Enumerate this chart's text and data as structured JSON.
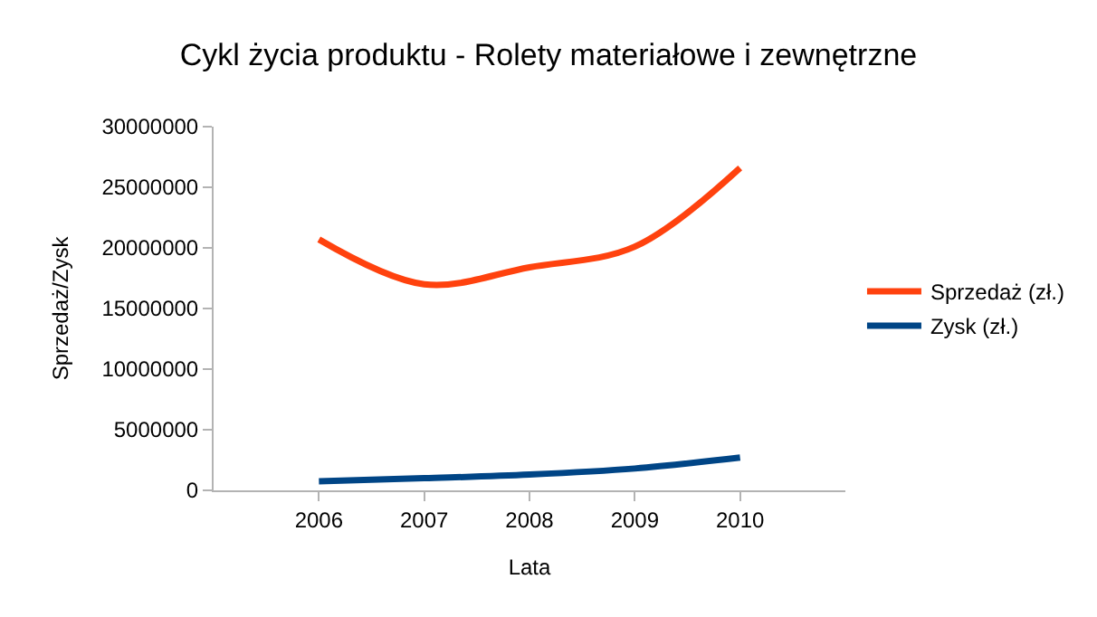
{
  "chart_data": {
    "type": "line",
    "title": "Cykl życia produktu - Rolety materiałowe i zewnętrzne",
    "xlabel": "Lata",
    "ylabel": "Sprzedaż/Zysk",
    "x": [
      2006,
      2007,
      2008,
      2009,
      2010
    ],
    "series": [
      {
        "name": "Sprzedaż (zł.)",
        "color": "#ff420e",
        "values": [
          20700000,
          17000000,
          18400000,
          20100000,
          26600000
        ]
      },
      {
        "name": "Zysk (zł.)",
        "color": "#004586",
        "values": [
          750000,
          1000000,
          1300000,
          1800000,
          2700000
        ]
      }
    ],
    "xlim": [
      2005,
      2011
    ],
    "xticks": [
      2006,
      2007,
      2008,
      2009,
      2010
    ],
    "ylim": [
      0,
      30000000
    ],
    "yticks": [
      0,
      5000000,
      10000000,
      15000000,
      20000000,
      25000000,
      30000000
    ],
    "legend": "right",
    "grid": false,
    "marker": "none",
    "line_style": "solid"
  }
}
